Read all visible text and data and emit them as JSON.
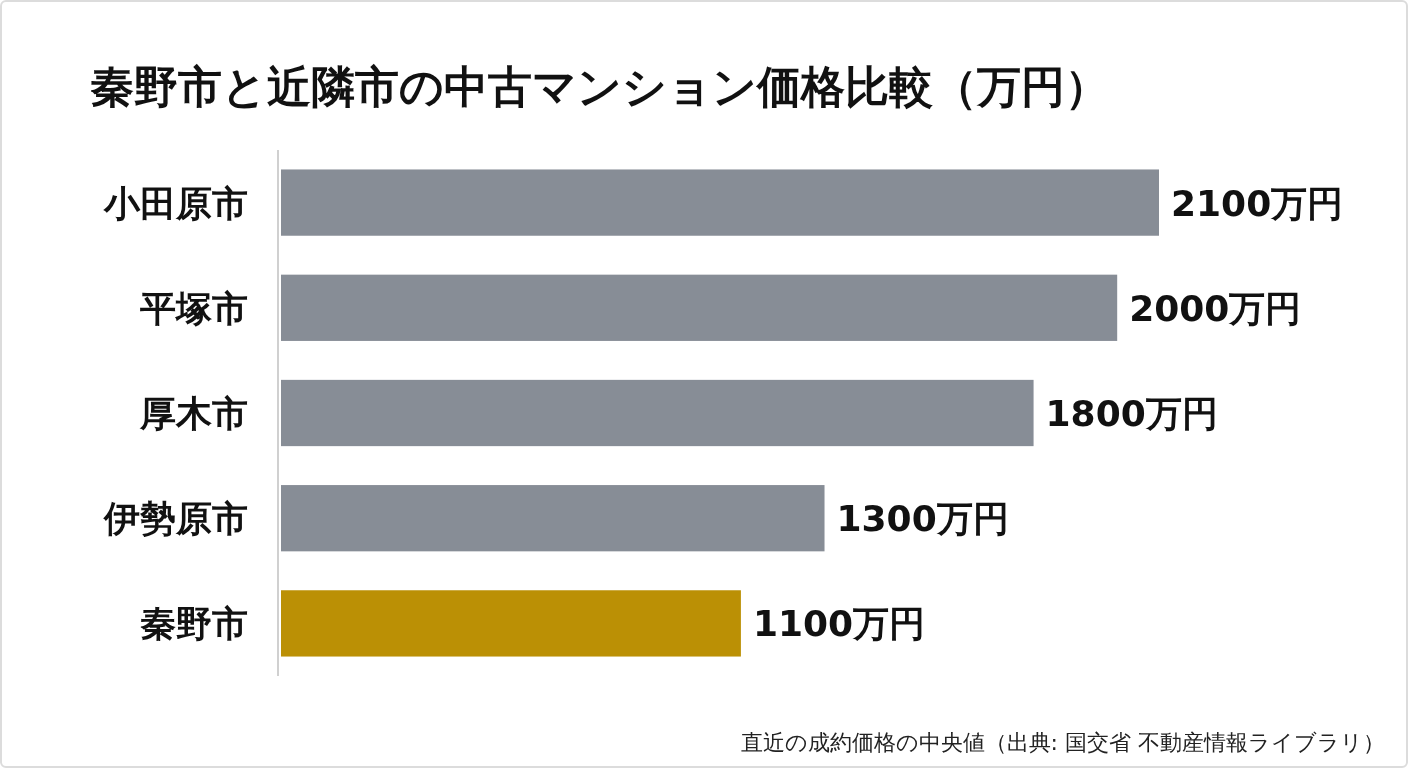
{
  "chart_data": {
    "type": "bar",
    "orientation": "horizontal",
    "title": "秦野市と近隣市の中古マンション価格比較（万円）",
    "categories": [
      "小田原市",
      "平塚市",
      "厚木市",
      "伊勢原市",
      "秦野市"
    ],
    "values": [
      2100,
      2000,
      1800,
      1300,
      1100
    ],
    "colors": [
      "#878d96",
      "#878d96",
      "#878d96",
      "#878d96",
      "#bb9005"
    ],
    "value_labels": [
      "2100万円",
      "2000万円",
      "1800万円",
      "1300万円",
      "1100万円"
    ],
    "annotations": [
      "直近の成約価格の中央値（出典: 国交省 不動産情報ライブラリ）"
    ]
  }
}
